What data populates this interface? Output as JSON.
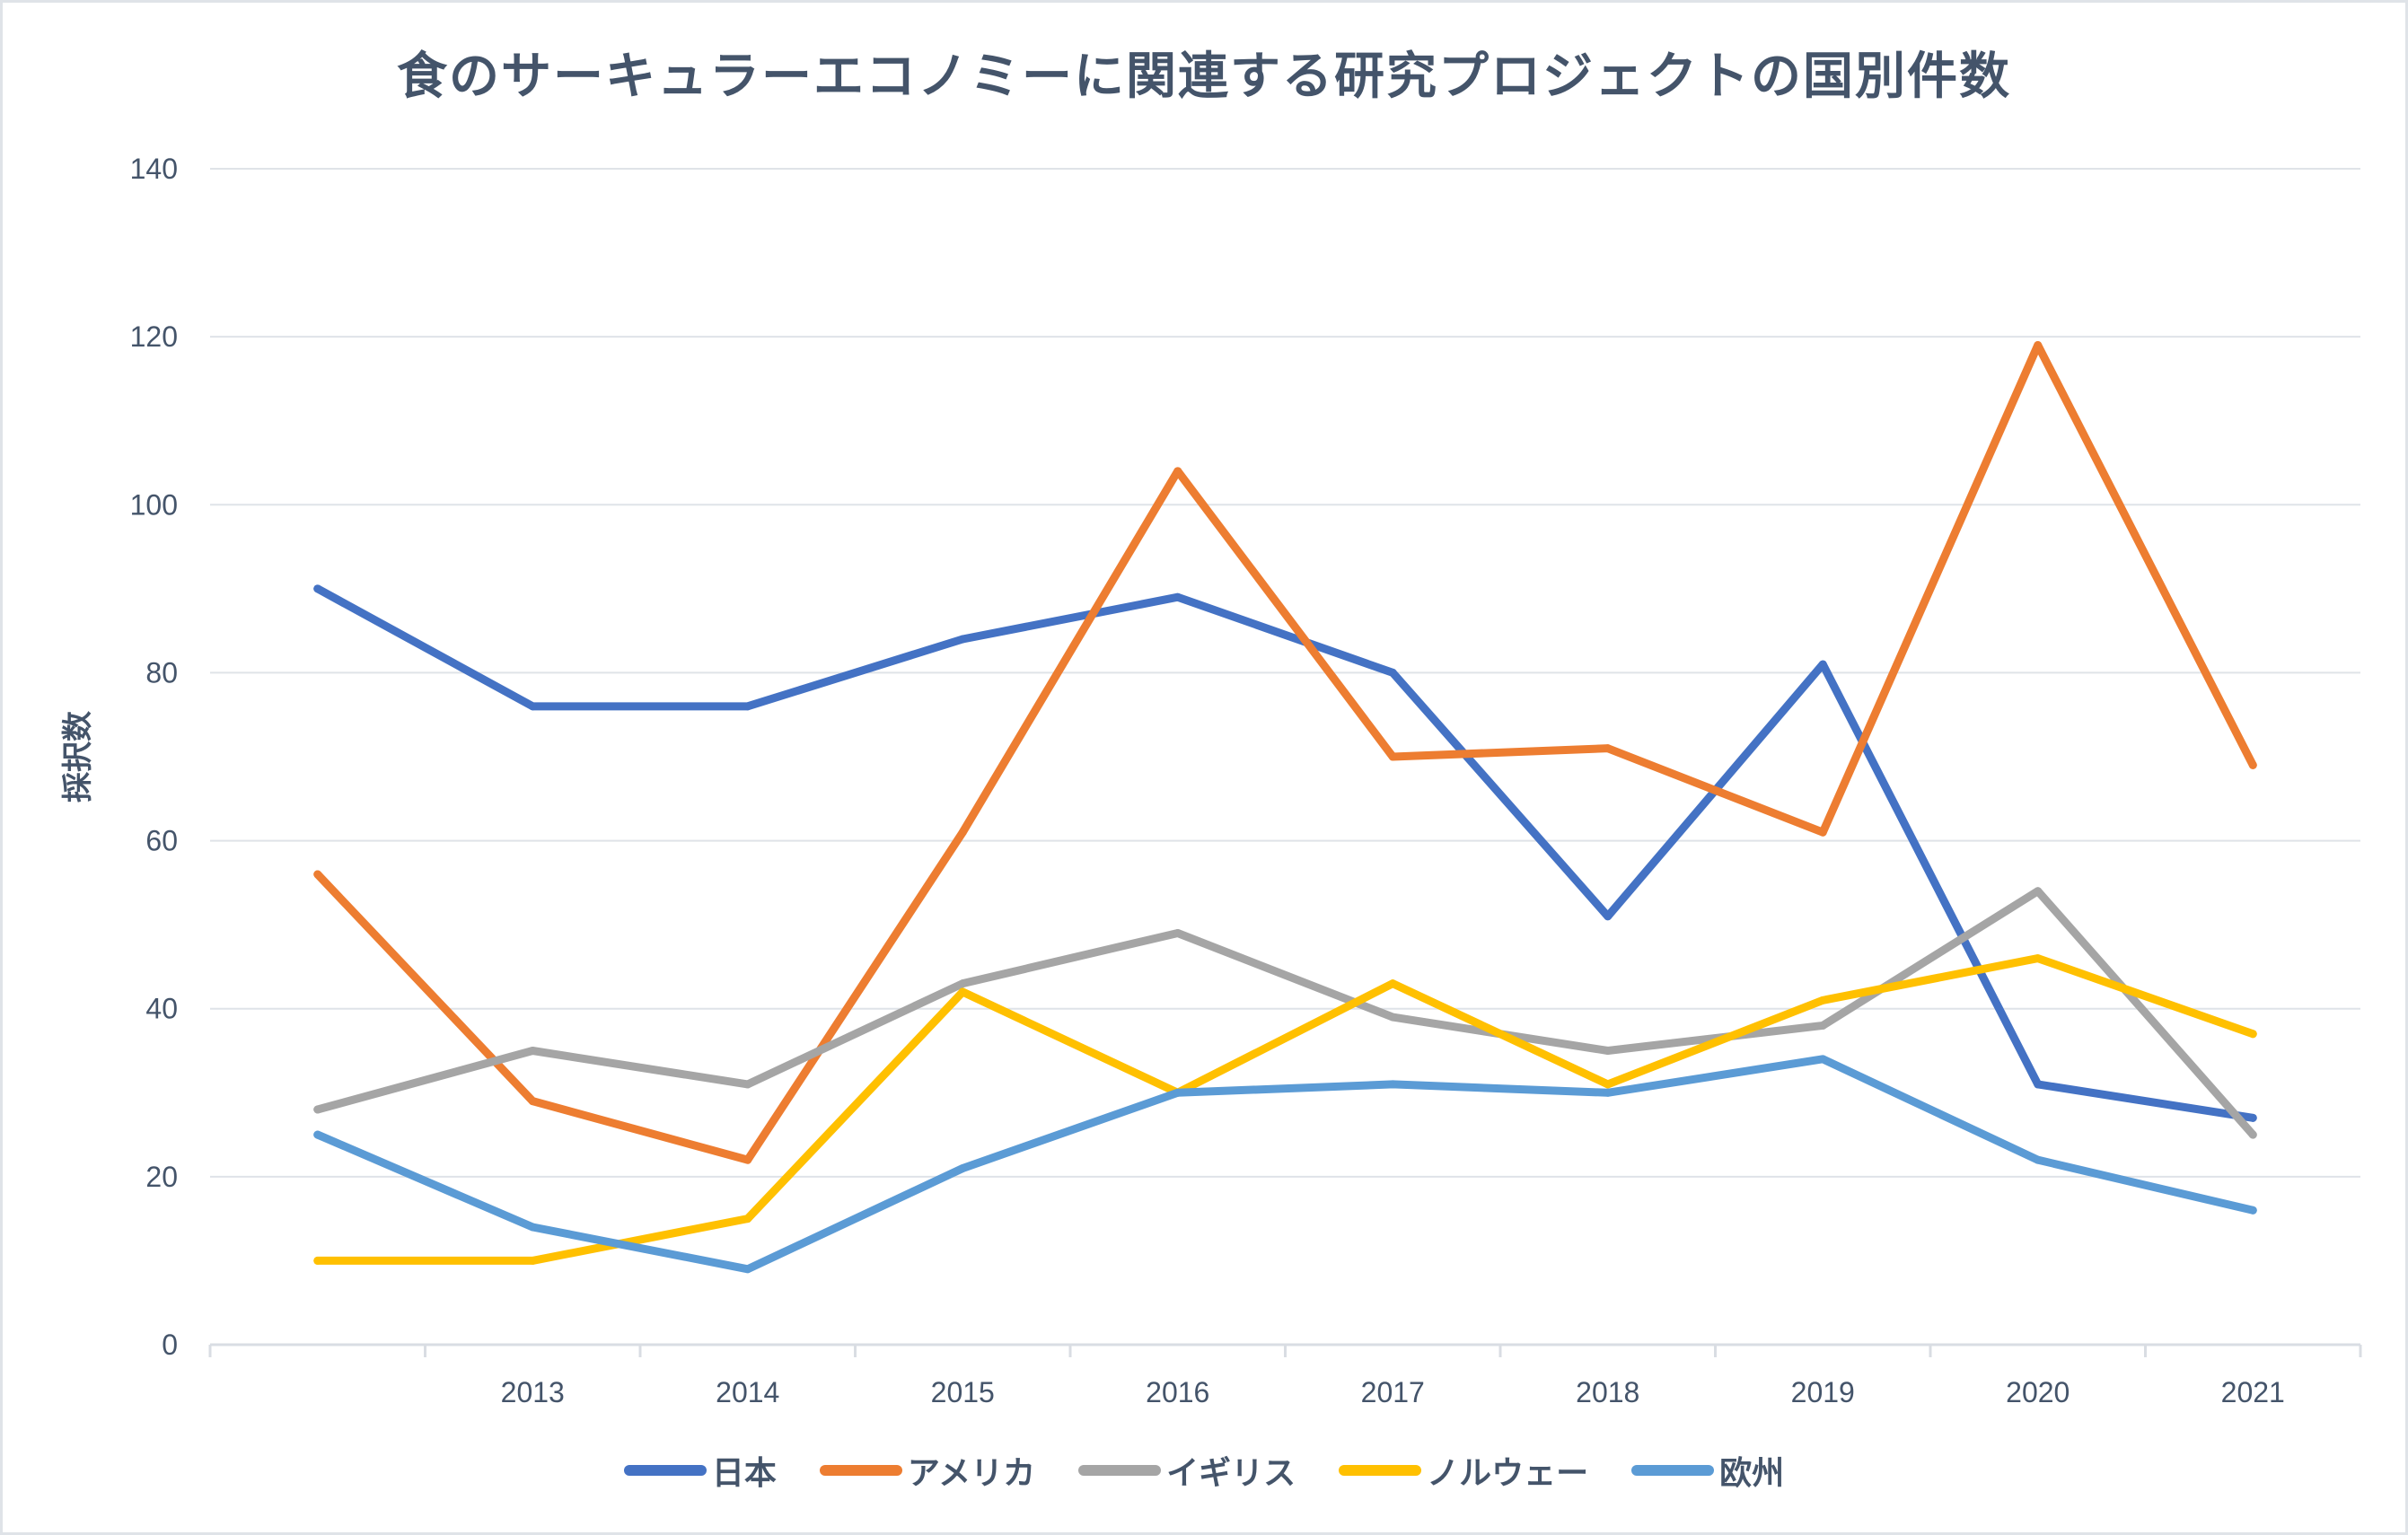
{
  "chart_data": {
    "type": "line",
    "title": "食のサーキュラーエコノミーに関連する研究プロジェクトの国別件数",
    "xlabel": "",
    "ylabel": "採択数",
    "categories": [
      "",
      "2013",
      "2014",
      "2015",
      "2016",
      "2017",
      "2018",
      "2019",
      "2020",
      "2021"
    ],
    "ylim": [
      0,
      140
    ],
    "yticks": [
      0,
      20,
      40,
      60,
      80,
      100,
      120,
      140
    ],
    "grid": true,
    "legend_position": "bottom",
    "series": [
      {
        "name": "日本",
        "color": "#4472c4",
        "values": [
          90,
          76,
          76,
          84,
          89,
          80,
          51,
          81,
          31,
          27
        ]
      },
      {
        "name": "アメリカ",
        "color": "#ed7d31",
        "values": [
          56,
          29,
          22,
          61,
          104,
          70,
          71,
          61,
          119,
          69
        ]
      },
      {
        "name": "イギリス",
        "color": "#a5a5a5",
        "values": [
          28,
          35,
          31,
          43,
          49,
          39,
          35,
          38,
          54,
          25
        ]
      },
      {
        "name": "ノルウェー",
        "color": "#ffc000",
        "values": [
          10,
          10,
          15,
          42,
          30,
          43,
          31,
          41,
          46,
          37
        ]
      },
      {
        "name": "欧州",
        "color": "#5b9bd5",
        "values": [
          25,
          14,
          9,
          21,
          30,
          31,
          30,
          34,
          22,
          16
        ]
      }
    ]
  }
}
